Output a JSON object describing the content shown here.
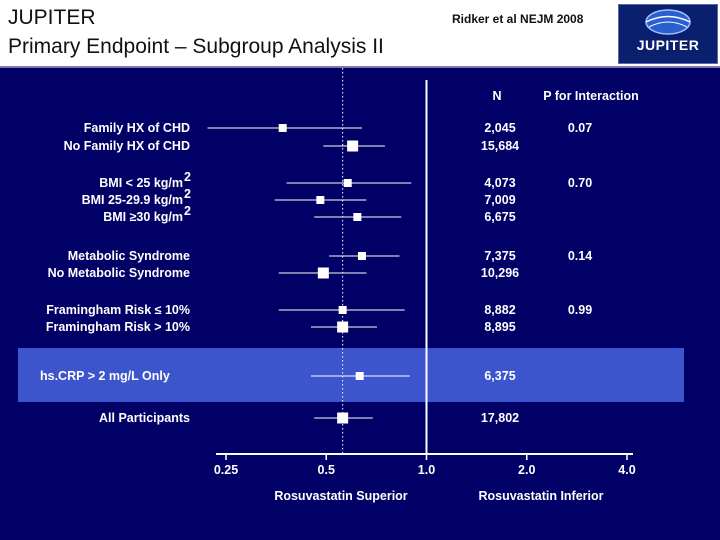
{
  "header": {
    "title_line1": "JUPITER",
    "title_line2": "Primary Endpoint – Subgroup Analysis II",
    "citation": "Ridker et al NEJM 2008",
    "logo_text": "JUPITER",
    "logo_icon": "globe-icon"
  },
  "colors": {
    "background": "#000066",
    "highlight_band": "#3d55cc",
    "marker": "#ffffff",
    "header_bg": "#ffffff"
  },
  "chart_data": {
    "type": "forest",
    "xscale": "log",
    "xlim": [
      0.2,
      4.6
    ],
    "xticks": [
      {
        "value": 0.25,
        "label": "0.25"
      },
      {
        "value": 0.5,
        "label": "0.5"
      },
      {
        "value": 1.0,
        "label": "1.0"
      },
      {
        "value": 2.0,
        "label": "2.0"
      },
      {
        "value": 4.0,
        "label": "4.0"
      }
    ],
    "reference_line": 1.0,
    "overall_estimate_line": 0.56,
    "left_label": "Rosuvastatin Superior",
    "right_label": "Rosuvastatin Inferior",
    "column_headers": {
      "n": "N",
      "p": "P for Interaction"
    },
    "groups": [
      {
        "p": "0.07",
        "rows": [
          {
            "label": "Family HX of CHD",
            "n": "2,045",
            "hr": 0.37,
            "lo": 0.22,
            "hi": 0.64,
            "size": "small"
          },
          {
            "label": "No Family HX of CHD",
            "n": "15,684",
            "hr": 0.6,
            "lo": 0.49,
            "hi": 0.75,
            "size": "large"
          }
        ]
      },
      {
        "p": "0.70",
        "rows": [
          {
            "label": "BMI < 25 kg/m",
            "sup": "2",
            "n": "4,073",
            "hr": 0.58,
            "lo": 0.38,
            "hi": 0.9,
            "size": "small"
          },
          {
            "label": "BMI 25-29.9 kg/m",
            "sup": "2",
            "n": "7,009",
            "hr": 0.48,
            "lo": 0.35,
            "hi": 0.66,
            "size": "small"
          },
          {
            "label": "BMI ≥30 kg/m",
            "sup": "2",
            "n": "6,675",
            "hr": 0.62,
            "lo": 0.46,
            "hi": 0.84,
            "size": "small"
          }
        ]
      },
      {
        "p": "0.14",
        "rows": [
          {
            "label": "Metabolic Syndrome",
            "n": "7,375",
            "hr": 0.64,
            "lo": 0.51,
            "hi": 0.83,
            "size": "small"
          },
          {
            "label": "No Metabolic Syndrome",
            "n": "10,296",
            "hr": 0.49,
            "lo": 0.36,
            "hi": 0.66,
            "size": "large"
          }
        ]
      },
      {
        "p": "0.99",
        "rows": [
          {
            "label": "Framingham Risk ≤ 10%",
            "n": "8,882",
            "hr": 0.56,
            "lo": 0.36,
            "hi": 0.86,
            "size": "small"
          },
          {
            "label": "Framingham Risk > 10%",
            "n": "8,895",
            "hr": 0.56,
            "lo": 0.45,
            "hi": 0.71,
            "size": "large"
          }
        ]
      },
      {
        "p": "",
        "highlight": true,
        "rows": [
          {
            "label": "hs.CRP > 2 mg/L Only",
            "n": "6,375",
            "hr": 0.63,
            "lo": 0.45,
            "hi": 0.89,
            "size": "small"
          }
        ]
      },
      {
        "p": "",
        "rows": [
          {
            "label": "All Participants",
            "n": "17,802",
            "hr": 0.56,
            "lo": 0.46,
            "hi": 0.69,
            "size": "large"
          }
        ]
      }
    ]
  }
}
